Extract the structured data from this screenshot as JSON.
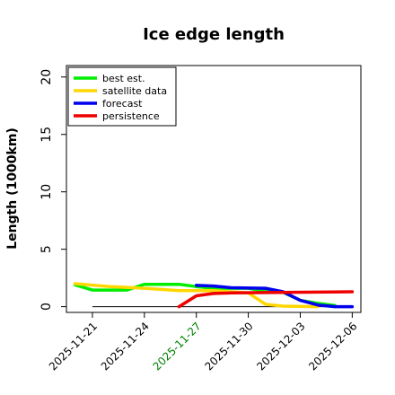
{
  "chart_data": {
    "type": "line",
    "title": "Ice edge length",
    "xlabel": "",
    "ylabel": "Length (1000km)",
    "ylim": [
      -0.5,
      21
    ],
    "yticks": [
      0,
      5,
      10,
      15,
      20
    ],
    "xlim": [
      "2025-11-19T12:00",
      "2025-12-06T12:00"
    ],
    "xticks": [
      {
        "date": "2025-11-21",
        "label": "2025-11-21",
        "color": "#000000"
      },
      {
        "date": "2025-11-24",
        "label": "2025-11-24",
        "color": "#000000"
      },
      {
        "date": "2025-11-27",
        "label": "2025-11-27",
        "color": "#008000"
      },
      {
        "date": "2025-11-30",
        "label": "2025-11-30",
        "color": "#000000"
      },
      {
        "date": "2025-12-03",
        "label": "2025-12-03",
        "color": "#000000"
      },
      {
        "date": "2025-12-06",
        "label": "2025-12-06",
        "color": "#000000"
      }
    ],
    "legend": "top-left",
    "grid": false,
    "reference_line": {
      "value": 0,
      "from": "2025-11-21",
      "to": "2025-12-06",
      "color": "#000000"
    },
    "series": [
      {
        "name": "best est.",
        "color": "#00ee00",
        "points": [
          {
            "x": "2025-11-20",
            "y": 1.9
          },
          {
            "x": "2025-11-21",
            "y": 1.45
          },
          {
            "x": "2025-11-23",
            "y": 1.45
          },
          {
            "x": "2025-11-24",
            "y": 1.95
          },
          {
            "x": "2025-11-26",
            "y": 1.95
          },
          {
            "x": "2025-11-27",
            "y": 1.75
          },
          {
            "x": "2025-11-28",
            "y": 1.6
          },
          {
            "x": "2025-11-30",
            "y": 1.6
          },
          {
            "x": "2025-12-01",
            "y": 1.35
          },
          {
            "x": "2025-12-02",
            "y": 1.25
          },
          {
            "x": "2025-12-03",
            "y": 0.55
          },
          {
            "x": "2025-12-04",
            "y": 0.3
          },
          {
            "x": "2025-12-05",
            "y": 0.1
          }
        ]
      },
      {
        "name": "satellite data",
        "color": "#ffd700",
        "points": [
          {
            "x": "2025-11-20",
            "y": 2.0
          },
          {
            "x": "2025-11-22",
            "y": 1.75
          },
          {
            "x": "2025-11-24",
            "y": 1.6
          },
          {
            "x": "2025-11-26",
            "y": 1.4
          },
          {
            "x": "2025-11-28",
            "y": 1.4
          },
          {
            "x": "2025-11-30",
            "y": 1.2
          },
          {
            "x": "2025-12-01",
            "y": 0.2
          },
          {
            "x": "2025-12-02",
            "y": 0.05
          },
          {
            "x": "2025-12-04",
            "y": 0.0
          }
        ]
      },
      {
        "name": "forecast",
        "color": "#0000ee",
        "points": [
          {
            "x": "2025-11-27",
            "y": 1.85
          },
          {
            "x": "2025-11-28",
            "y": 1.8
          },
          {
            "x": "2025-11-29",
            "y": 1.65
          },
          {
            "x": "2025-12-01",
            "y": 1.6
          },
          {
            "x": "2025-12-02",
            "y": 1.3
          },
          {
            "x": "2025-12-03",
            "y": 0.55
          },
          {
            "x": "2025-12-04",
            "y": 0.15
          },
          {
            "x": "2025-12-05",
            "y": 0.0
          },
          {
            "x": "2025-12-06",
            "y": 0.0
          }
        ]
      },
      {
        "name": "persistence",
        "color": "#ee0000",
        "points": [
          {
            "x": "2025-11-26",
            "y": 0.0
          },
          {
            "x": "2025-11-27",
            "y": 0.95
          },
          {
            "x": "2025-11-28",
            "y": 1.15
          },
          {
            "x": "2025-11-29",
            "y": 1.2
          },
          {
            "x": "2025-12-06",
            "y": 1.3
          }
        ]
      }
    ]
  }
}
